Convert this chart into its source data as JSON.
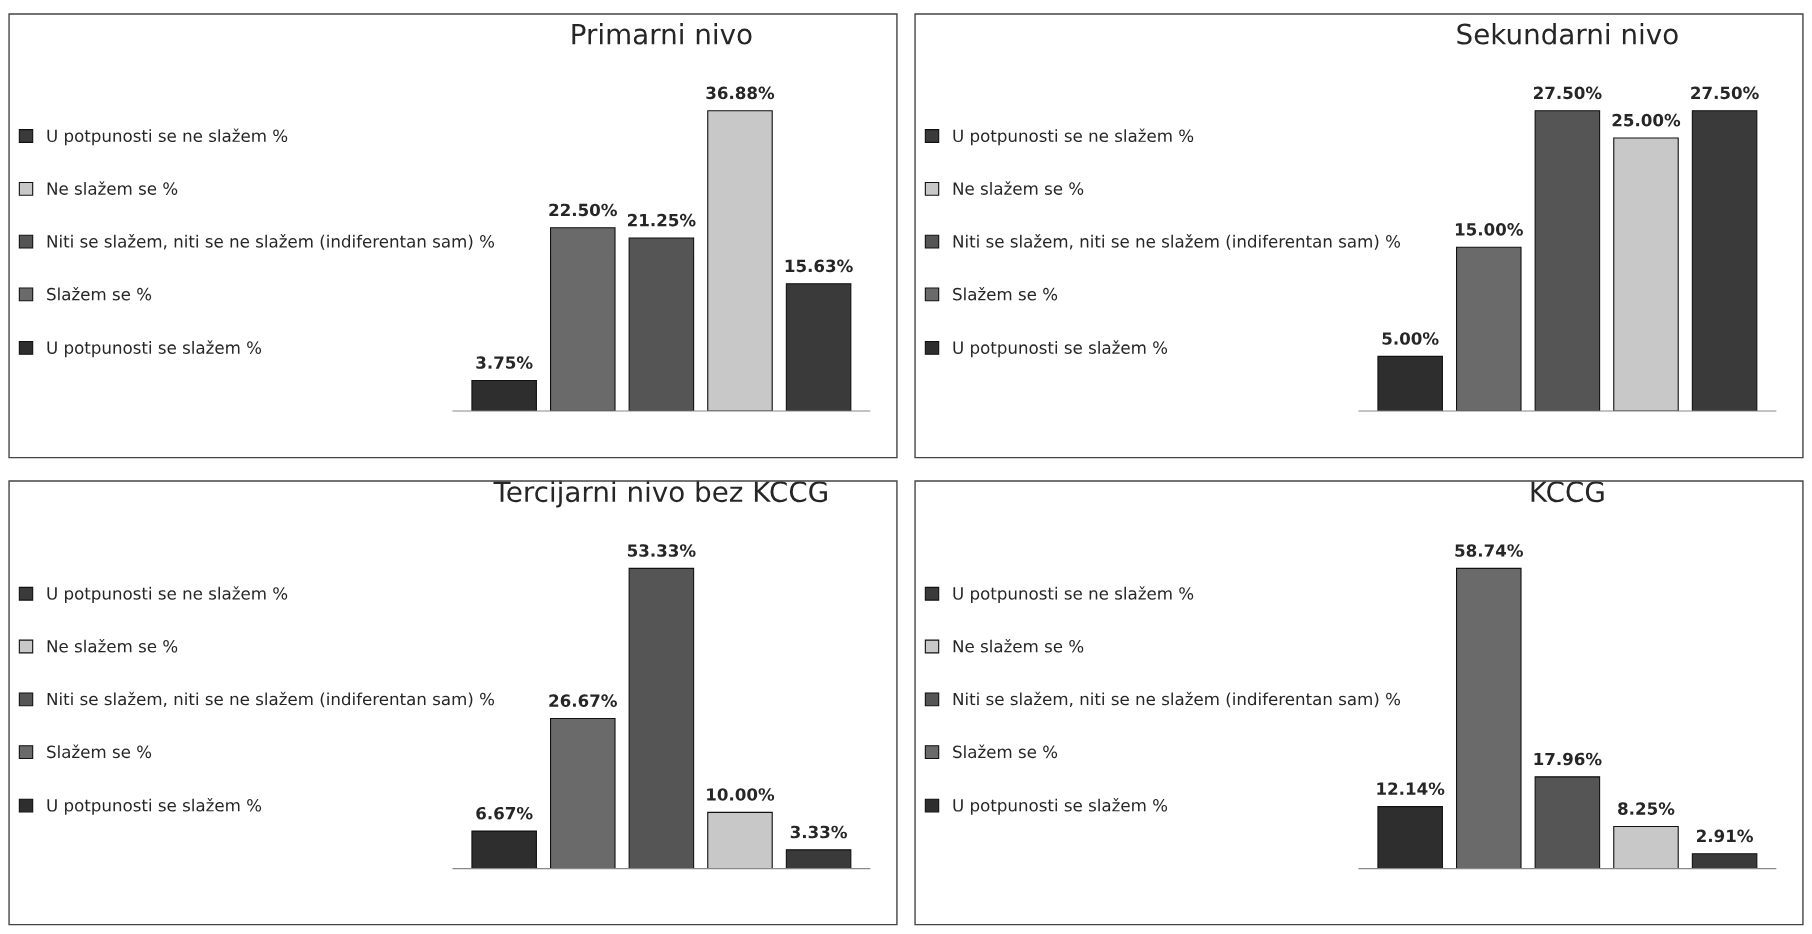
{
  "chart_data": [
    {
      "type": "bar",
      "title": "Primarni nivo",
      "categories": [
        null
      ],
      "legend": "left",
      "series": [
        {
          "name": "U potpunosti se slažem %",
          "color": "#2e2e2e",
          "values": [
            3.75
          ],
          "value_labels": [
            "3.75%"
          ]
        },
        {
          "name": "Slažem se %",
          "color": "#6a6a6a",
          "values": [
            22.5
          ],
          "value_labels": [
            "22.50%"
          ]
        },
        {
          "name": "Niti se slažem, niti se ne slažem (indiferentan sam) %",
          "color": "#555555",
          "values": [
            21.25
          ],
          "value_labels": [
            "21.25%"
          ]
        },
        {
          "name": "Ne slažem se %",
          "color": "#c8c8c8",
          "values": [
            36.88
          ],
          "value_labels": [
            "36.88%"
          ]
        },
        {
          "name": "U potpunosti se ne slažem %",
          "color": "#3a3a3a",
          "values": [
            15.63
          ],
          "value_labels": [
            "15.63%"
          ]
        }
      ]
    },
    {
      "type": "bar",
      "title": "Sekundarni nivo",
      "categories": [
        null
      ],
      "legend": "left",
      "series": [
        {
          "name": "U potpunosti se slažem %",
          "color": "#2e2e2e",
          "values": [
            5.0
          ],
          "value_labels": [
            "5.00%"
          ]
        },
        {
          "name": "Slažem se %",
          "color": "#6a6a6a",
          "values": [
            15.0
          ],
          "value_labels": [
            "15.00%"
          ]
        },
        {
          "name": "Niti se slažem, niti se ne slažem (indiferentan sam) %",
          "color": "#555555",
          "values": [
            27.5
          ],
          "value_labels": [
            "27.50%"
          ]
        },
        {
          "name": "Ne slažem se %",
          "color": "#c8c8c8",
          "values": [
            25.0
          ],
          "value_labels": [
            "25.00%"
          ]
        },
        {
          "name": "U potpunosti se ne slažem %",
          "color": "#3a3a3a",
          "values": [
            27.5
          ],
          "value_labels": [
            "27.50%"
          ]
        }
      ]
    },
    {
      "type": "bar",
      "title": "Tercijarni nivo bez KCCG",
      "categories": [
        null
      ],
      "legend": "left",
      "series": [
        {
          "name": "U potpunosti se slažem %",
          "color": "#2e2e2e",
          "values": [
            6.67
          ],
          "value_labels": [
            "6.67%"
          ]
        },
        {
          "name": "Slažem se %",
          "color": "#6a6a6a",
          "values": [
            26.67
          ],
          "value_labels": [
            "26.67%"
          ]
        },
        {
          "name": "Niti se slažem, niti se ne slažem (indiferentan sam) %",
          "color": "#555555",
          "values": [
            53.33
          ],
          "value_labels": [
            "53.33%"
          ]
        },
        {
          "name": "Ne slažem se %",
          "color": "#c8c8c8",
          "values": [
            10.0
          ],
          "value_labels": [
            "10.00%"
          ]
        },
        {
          "name": "U potpunosti se ne slažem %",
          "color": "#3a3a3a",
          "values": [
            3.33
          ],
          "value_labels": [
            "3.33%"
          ]
        }
      ]
    },
    {
      "type": "bar",
      "title": "KCCG",
      "categories": [
        null
      ],
      "legend": "left",
      "series": [
        {
          "name": "U potpunosti se slažem %",
          "color": "#2e2e2e",
          "values": [
            12.14
          ],
          "value_labels": [
            "12.14%"
          ]
        },
        {
          "name": "Slažem se %",
          "color": "#6a6a6a",
          "values": [
            58.74
          ],
          "value_labels": [
            "58.74%"
          ]
        },
        {
          "name": "Niti se slažem, niti se ne slažem (indiferentan sam) %",
          "color": "#555555",
          "values": [
            17.96
          ],
          "value_labels": [
            "17.96%"
          ]
        },
        {
          "name": "Ne slažem se %",
          "color": "#c8c8c8",
          "values": [
            8.25
          ],
          "value_labels": [
            "8.25%"
          ]
        },
        {
          "name": "U potpunosti se ne slažem %",
          "color": "#3a3a3a",
          "values": [
            2.91
          ],
          "value_labels": [
            "2.91%"
          ]
        }
      ]
    }
  ]
}
